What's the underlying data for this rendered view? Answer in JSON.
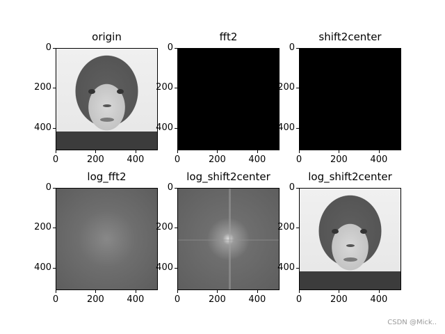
{
  "chart_data": [
    {
      "type": "heatmap",
      "title": "origin",
      "content": "grayscale photo of baby in knit hat",
      "xticks": [
        0,
        200,
        400
      ],
      "yticks": [
        0,
        200,
        400
      ],
      "xlim": [
        0,
        512
      ],
      "ylim": [
        512,
        0
      ],
      "colormap": "gray"
    },
    {
      "type": "heatmap",
      "title": "fft2",
      "content": "magnitude of 2D FFT (appears all black)",
      "xticks": [
        0,
        200,
        400
      ],
      "yticks": [
        0,
        200,
        400
      ],
      "xlim": [
        0,
        512
      ],
      "ylim": [
        512,
        0
      ],
      "colormap": "gray"
    },
    {
      "type": "heatmap",
      "title": "shift2center",
      "content": "fftshift magnitude (black with faint center dot at ~256,256)",
      "xticks": [
        0,
        200,
        400
      ],
      "yticks": [
        0,
        200,
        400
      ],
      "xlim": [
        0,
        512
      ],
      "ylim": [
        512,
        0
      ],
      "colormap": "gray"
    },
    {
      "type": "heatmap",
      "title": "log_fft2",
      "content": "log magnitude spectrum, brighter corners, noisy gray",
      "xticks": [
        0,
        200,
        400
      ],
      "yticks": [
        0,
        200,
        400
      ],
      "xlim": [
        0,
        512
      ],
      "ylim": [
        512,
        0
      ],
      "colormap": "gray"
    },
    {
      "type": "heatmap",
      "title": "log_shift2center",
      "content": "log shifted spectrum, bright center at (256,256) with vertical/horizontal lines",
      "xticks": [
        0,
        200,
        400
      ],
      "yticks": [
        0,
        200,
        400
      ],
      "xlim": [
        0,
        512
      ],
      "ylim": [
        512,
        0
      ],
      "colormap": "gray"
    },
    {
      "type": "heatmap",
      "title": "log_shift2center",
      "content": "reconstructed grayscale photo of baby",
      "xticks": [
        0,
        200,
        400
      ],
      "yticks": [
        0,
        200,
        400
      ],
      "xlim": [
        0,
        512
      ],
      "ylim": [
        512,
        0
      ],
      "colormap": "gray"
    }
  ],
  "panels": [
    {
      "title": "origin"
    },
    {
      "title": "fft2"
    },
    {
      "title": "shift2center"
    },
    {
      "title": "log_fft2"
    },
    {
      "title": "log_shift2center"
    },
    {
      "title": "log_shift2center"
    }
  ],
  "ticks": {
    "t0": "0",
    "t200": "200",
    "t400": "400"
  },
  "watermark": "CSDN @Mick.."
}
